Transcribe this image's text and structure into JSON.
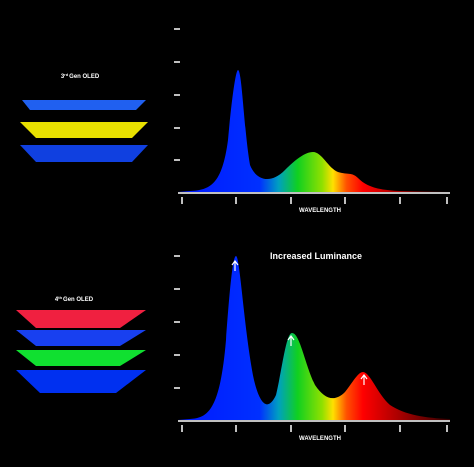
{
  "panels": [
    {
      "label": {
        "number": "3",
        "suffix": "rd",
        "text": "Gen OLED"
      },
      "x_axis_label": "WAVELENGTH"
    },
    {
      "label": {
        "number": "4",
        "suffix": "th",
        "text": "Gen OLED"
      },
      "x_axis_label": "WAVELENGTH",
      "annotation": "Increased Luminance"
    }
  ]
}
